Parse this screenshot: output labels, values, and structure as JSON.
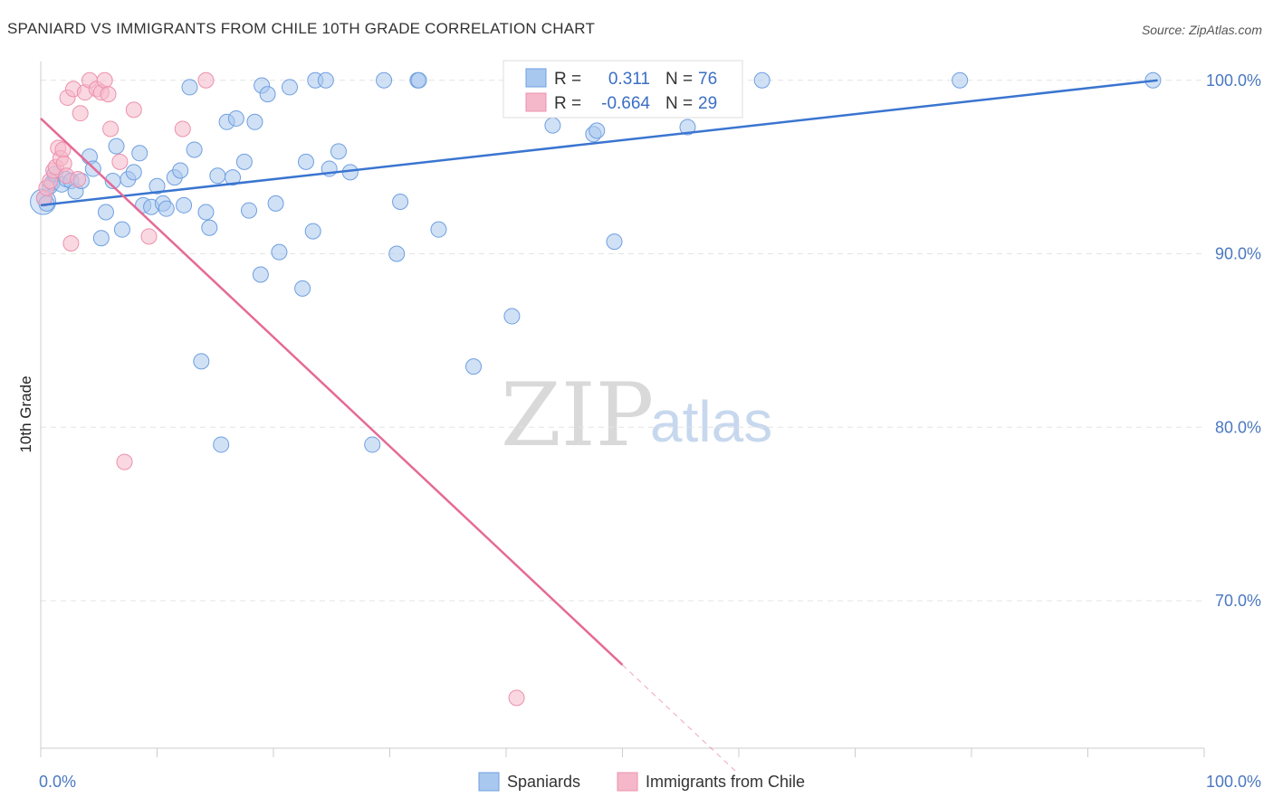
{
  "header": {
    "title": "SPANIARD VS IMMIGRANTS FROM CHILE 10TH GRADE CORRELATION CHART",
    "source": "Source: ZipAtlas.com"
  },
  "watermark": {
    "zip": "ZIP",
    "atlas": "atlas"
  },
  "legend": {
    "r_label": "R =",
    "n_label": "N =",
    "rows": [
      {
        "r": "0.311",
        "n": "76",
        "color": "#a9c8ef"
      },
      {
        "r": "-0.664",
        "n": "29",
        "color": "#f5b8cb"
      }
    ]
  },
  "bottom_legend": {
    "items": [
      {
        "label": "Spaniards",
        "color": "#a9c8ef"
      },
      {
        "label": "Immigrants from Chile",
        "color": "#f5b8cb"
      }
    ]
  },
  "colors": {
    "blue_fill": "#a9c8ef",
    "blue_stroke": "#6f9fe0",
    "blue_line": "#3a75d0",
    "pink_fill": "#f5b8cb",
    "pink_stroke": "#ec91ad",
    "pink_line": "#e56a96",
    "grid": "#e3e3e3"
  },
  "chart_data": {
    "type": "scatter",
    "title": "SPANIARD VS IMMIGRANTS FROM CHILE 10TH GRADE CORRELATION CHART",
    "xlabel": "",
    "ylabel": "10th Grade",
    "xlim": [
      0,
      100
    ],
    "ylim": [
      61.5,
      101.5
    ],
    "x_tick_labels": [
      "0.0%",
      "100.0%"
    ],
    "y_ticks": [
      70,
      80,
      90,
      100
    ],
    "y_tick_labels": [
      "70.0%",
      "80.0%",
      "90.0%",
      "100.0%"
    ],
    "grid": true,
    "series": [
      {
        "name": "Spaniards",
        "r": 0.311,
        "n": 76,
        "trend": {
          "x": [
            0,
            96
          ],
          "y": [
            92.8,
            100.0
          ]
        },
        "points": [
          [
            0.3,
            93.2
          ],
          [
            0.5,
            92.9
          ],
          [
            0.8,
            93.9
          ],
          [
            1.0,
            94.1
          ],
          [
            1.2,
            94.6
          ],
          [
            1.8,
            94.0
          ],
          [
            2.2,
            94.3
          ],
          [
            2.6,
            94.2
          ],
          [
            3.0,
            93.6
          ],
          [
            3.5,
            94.2
          ],
          [
            4.2,
            95.6
          ],
          [
            4.5,
            94.9
          ],
          [
            5.2,
            90.9
          ],
          [
            5.6,
            92.4
          ],
          [
            6.2,
            94.2
          ],
          [
            6.5,
            96.2
          ],
          [
            7.0,
            91.4
          ],
          [
            7.5,
            94.3
          ],
          [
            8.0,
            94.7
          ],
          [
            8.5,
            95.8
          ],
          [
            8.8,
            92.8
          ],
          [
            9.5,
            92.7
          ],
          [
            10.0,
            93.9
          ],
          [
            10.5,
            92.9
          ],
          [
            10.8,
            92.6
          ],
          [
            11.5,
            94.4
          ],
          [
            12.0,
            94.8
          ],
          [
            12.3,
            92.8
          ],
          [
            12.8,
            99.6
          ],
          [
            13.2,
            96.0
          ],
          [
            13.8,
            83.8
          ],
          [
            14.2,
            92.4
          ],
          [
            14.5,
            91.5
          ],
          [
            15.2,
            94.5
          ],
          [
            15.5,
            79.0
          ],
          [
            16.0,
            97.6
          ],
          [
            16.5,
            94.4
          ],
          [
            16.8,
            97.8
          ],
          [
            17.5,
            95.3
          ],
          [
            17.9,
            92.5
          ],
          [
            18.4,
            97.6
          ],
          [
            18.9,
            88.8
          ],
          [
            19.0,
            99.7
          ],
          [
            19.5,
            99.2
          ],
          [
            20.2,
            92.9
          ],
          [
            20.5,
            90.1
          ],
          [
            21.4,
            99.6
          ],
          [
            22.5,
            88.0
          ],
          [
            22.8,
            95.3
          ],
          [
            23.4,
            91.3
          ],
          [
            23.6,
            100.0
          ],
          [
            24.5,
            100.0
          ],
          [
            24.8,
            94.9
          ],
          [
            25.6,
            95.9
          ],
          [
            26.6,
            94.7
          ],
          [
            28.5,
            79.0
          ],
          [
            29.5,
            100.0
          ],
          [
            30.6,
            90.0
          ],
          [
            30.9,
            93.0
          ],
          [
            32.4,
            100.0
          ],
          [
            32.5,
            100.0
          ],
          [
            34.2,
            91.4
          ],
          [
            37.2,
            83.5
          ],
          [
            40.5,
            86.4
          ],
          [
            41.0,
            100.0
          ],
          [
            44.0,
            97.4
          ],
          [
            47.5,
            96.9
          ],
          [
            47.8,
            97.1
          ],
          [
            49.3,
            90.7
          ],
          [
            52.0,
            99.2
          ],
          [
            55.6,
            97.3
          ],
          [
            59.0,
            100.0
          ],
          [
            79.0,
            100.0
          ],
          [
            95.6,
            100.0
          ],
          [
            53.0,
            100.0
          ],
          [
            62.0,
            100.0
          ]
        ]
      },
      {
        "name": "Immigrants from Chile",
        "r": -0.664,
        "n": 29,
        "trend": {
          "x": [
            0,
            50
          ],
          "y": [
            97.8,
            66.3
          ]
        },
        "trend_dashed": {
          "x": [
            50,
            60
          ],
          "y": [
            66.3,
            60.0
          ]
        },
        "points": [
          [
            0.3,
            93.2
          ],
          [
            0.5,
            93.8
          ],
          [
            0.8,
            94.2
          ],
          [
            1.1,
            94.8
          ],
          [
            1.3,
            95.0
          ],
          [
            1.5,
            96.1
          ],
          [
            1.7,
            95.5
          ],
          [
            1.9,
            96.0
          ],
          [
            2.0,
            95.2
          ],
          [
            2.2,
            94.5
          ],
          [
            2.3,
            99.0
          ],
          [
            2.6,
            90.6
          ],
          [
            2.8,
            99.5
          ],
          [
            3.4,
            98.1
          ],
          [
            3.8,
            99.3
          ],
          [
            4.2,
            100.0
          ],
          [
            4.8,
            99.5
          ],
          [
            5.2,
            99.3
          ],
          [
            5.5,
            100.0
          ],
          [
            5.8,
            99.2
          ],
          [
            6.0,
            97.2
          ],
          [
            6.8,
            95.3
          ],
          [
            7.2,
            78.0
          ],
          [
            8.0,
            98.3
          ],
          [
            9.3,
            91.0
          ],
          [
            12.2,
            97.2
          ],
          [
            14.2,
            100.0
          ],
          [
            40.9,
            64.4
          ],
          [
            3.2,
            94.3
          ]
        ]
      }
    ]
  }
}
